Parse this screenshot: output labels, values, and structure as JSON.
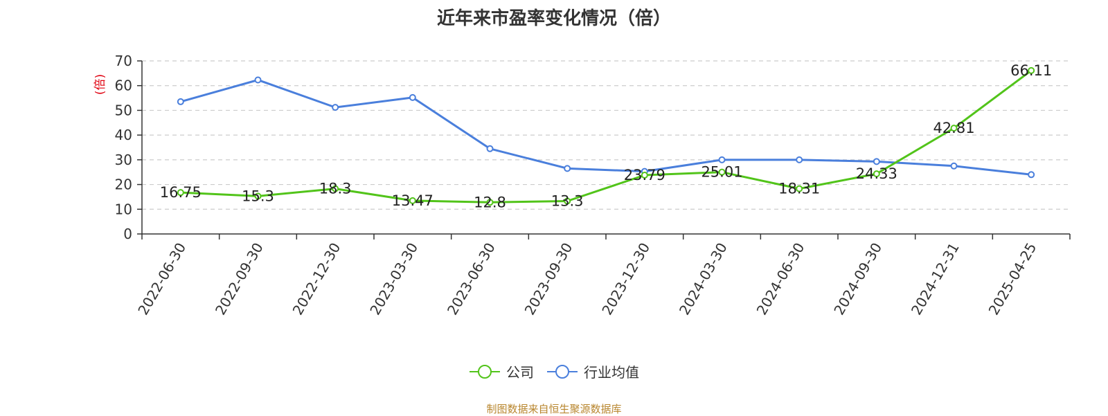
{
  "title": "近年来市盈率变化情况（倍）",
  "source": "制图数据来自恒生聚源数据库",
  "colors": {
    "company": "#52c41a",
    "industry": "#4a7fdc",
    "ylabel": "#e0000f",
    "axis": "#333333",
    "grid": "#cccccc",
    "title": "#333333",
    "source": "#b8862e"
  },
  "chart_data": {
    "type": "line",
    "title": "近年来市盈率变化情况（倍）",
    "ylabel": "(倍)",
    "xlabel": "",
    "ylim": [
      0,
      70
    ],
    "yticks": [
      0,
      10,
      20,
      30,
      40,
      50,
      60,
      70
    ],
    "grid": true,
    "legend_position": "bottom-center",
    "categories": [
      "2022-06-30",
      "2022-09-30",
      "2022-12-30",
      "2023-03-30",
      "2023-06-30",
      "2023-09-30",
      "2023-12-30",
      "2024-03-30",
      "2024-06-30",
      "2024-09-30",
      "2024-12-31",
      "2025-04-25"
    ],
    "series": [
      {
        "name": "公司",
        "color": "#52c41a",
        "values": [
          16.75,
          15.3,
          18.3,
          13.47,
          12.8,
          13.3,
          23.79,
          25.01,
          18.31,
          24.33,
          42.81,
          66.11
        ],
        "data_labels": [
          "16.75",
          "15.3",
          "18.3",
          "13.47",
          "12.8",
          "13.3",
          "23.79",
          "25.01",
          "18.31",
          "24.33",
          "42.81",
          "66.11"
        ]
      },
      {
        "name": "行业均值",
        "color": "#4a7fdc",
        "values": [
          53.5,
          62.3,
          51.2,
          55.2,
          34.5,
          26.5,
          25.3,
          30.0,
          30.0,
          29.3,
          27.5,
          24.0
        ]
      }
    ]
  }
}
